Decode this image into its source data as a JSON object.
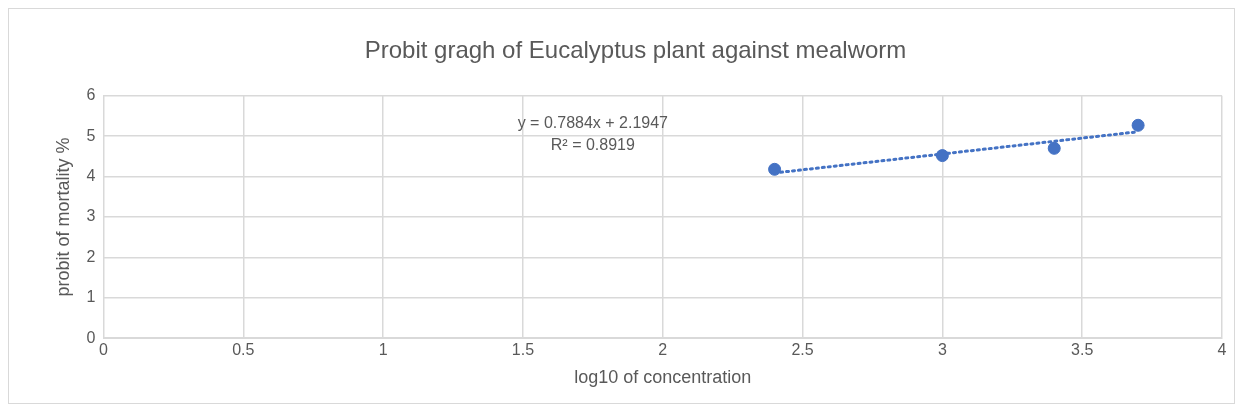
{
  "chart_data": {
    "type": "scatter",
    "title": "Probit gragh of Eucalyptus plant against mealworm",
    "xlabel": "log10 of concentration",
    "ylabel": "probit of mortality %",
    "xlim": [
      0,
      4
    ],
    "xticks": [
      0,
      0.5,
      1,
      1.5,
      2,
      2.5,
      3,
      3.5,
      4
    ],
    "ylim": [
      0,
      6
    ],
    "yticks": [
      0,
      1,
      2,
      3,
      4,
      5,
      6
    ],
    "grid": true,
    "marker": "circle",
    "series": [
      {
        "type": "scatter",
        "color": "#4472c4",
        "x": [
          2.4,
          3.0,
          3.4,
          3.7
        ],
        "values": [
          4.18,
          4.52,
          4.7,
          5.27
        ]
      },
      {
        "type": "line",
        "color": "#4472c4",
        "line_style": "dotted",
        "marker": "none",
        "x": [
          2.4,
          3.7
        ],
        "values": [
          4.09,
          5.11
        ]
      }
    ],
    "annotations": [
      "y = 0.7884x + 2.1947",
      "R² = 0.8919"
    ]
  }
}
